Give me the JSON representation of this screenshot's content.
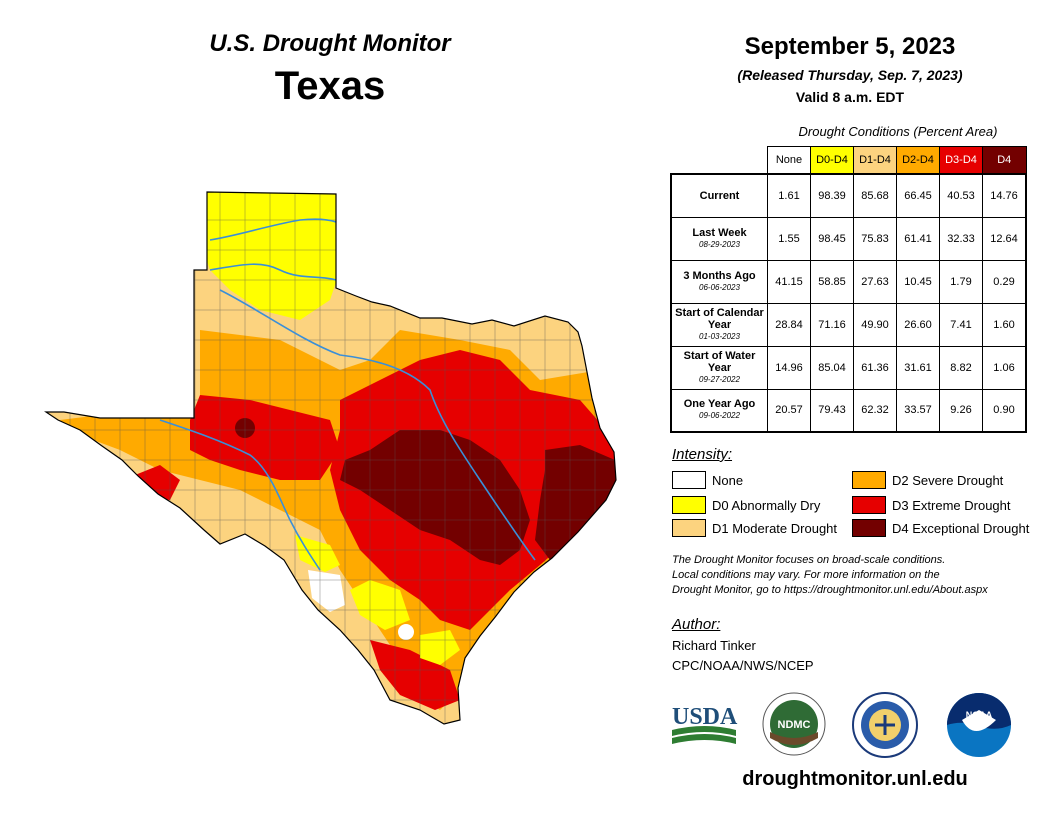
{
  "header": {
    "product": "U.S. Drought Monitor",
    "region": "Texas",
    "date": "September 5, 2023",
    "released": "(Released Thursday, Sep. 7, 2023)",
    "valid": "Valid 8 a.m. EDT"
  },
  "table": {
    "caption": "Drought Conditions (Percent Area)",
    "columns": [
      {
        "label": "None",
        "color": "#ffffff",
        "text_color": "#000000"
      },
      {
        "label": "D0-D4",
        "color": "#ffff00",
        "text_color": "#000000"
      },
      {
        "label": "D1-D4",
        "color": "#fcd37f",
        "text_color": "#000000"
      },
      {
        "label": "D2-D4",
        "color": "#ffaa00",
        "text_color": "#000000"
      },
      {
        "label": "D3-D4",
        "color": "#e60000",
        "text_color": "#ffffff"
      },
      {
        "label": "D4",
        "color": "#730000",
        "text_color": "#ffffff"
      }
    ],
    "rows": [
      {
        "label": "Current",
        "date": "",
        "values": [
          "1.61",
          "98.39",
          "85.68",
          "66.45",
          "40.53",
          "14.76"
        ]
      },
      {
        "label": "Last Week",
        "date": "08-29-2023",
        "values": [
          "1.55",
          "98.45",
          "75.83",
          "61.41",
          "32.33",
          "12.64"
        ]
      },
      {
        "label": "3 Months Ago",
        "date": "06-06-2023",
        "values": [
          "41.15",
          "58.85",
          "27.63",
          "10.45",
          "1.79",
          "0.29"
        ]
      },
      {
        "label": "Start of Calendar Year",
        "date": "01-03-2023",
        "values": [
          "28.84",
          "71.16",
          "49.90",
          "26.60",
          "7.41",
          "1.60"
        ]
      },
      {
        "label": "Start of Water Year",
        "date": "09-27-2022",
        "values": [
          "14.96",
          "85.04",
          "61.36",
          "31.61",
          "8.82",
          "1.06"
        ]
      },
      {
        "label": "One Year Ago",
        "date": "09-06-2022",
        "values": [
          "20.57",
          "79.43",
          "62.32",
          "33.57",
          "9.26",
          "0.90"
        ]
      }
    ]
  },
  "legend": {
    "title": "Intensity:",
    "items": [
      {
        "label": "None",
        "color": "#ffffff"
      },
      {
        "label": "D0 Abnormally Dry",
        "color": "#ffff00"
      },
      {
        "label": "D1 Moderate Drought",
        "color": "#fcd37f"
      },
      {
        "label": "D2 Severe Drought",
        "color": "#ffaa00"
      },
      {
        "label": "D3 Extreme Drought",
        "color": "#e60000"
      },
      {
        "label": "D4 Exceptional Drought",
        "color": "#730000"
      }
    ]
  },
  "disclaimer": {
    "line1": "The Drought Monitor focuses on broad-scale conditions.",
    "line2": "Local conditions may vary. For more information on the",
    "line3": "Drought Monitor, go to https://droughtmonitor.unl.edu/About.aspx"
  },
  "author": {
    "title": "Author:",
    "name": "Richard Tinker",
    "org": "CPC/NOAA/NWS/NCEP"
  },
  "logos": {
    "usda": "USDA",
    "ndmc": "NDMC",
    "noaa": "NOAA"
  },
  "footer": {
    "url": "droughtmonitor.unl.edu"
  }
}
